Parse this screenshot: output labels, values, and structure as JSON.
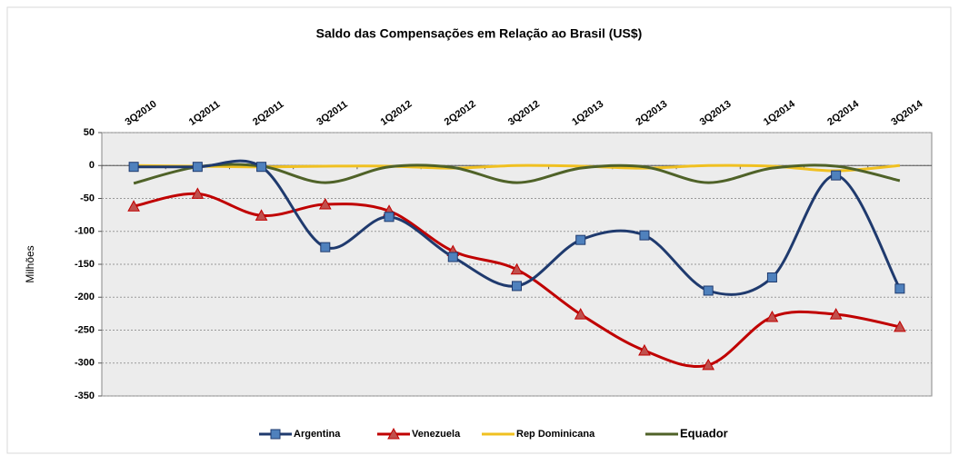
{
  "chart_data": {
    "type": "line",
    "title": "Saldo das Compensações em Relação ao Brasil (US$)",
    "y_label": "Milhões",
    "categories": [
      "3Q2010",
      "1Q2011",
      "2Q2011",
      "3Q2011",
      "1Q2012",
      "2Q2012",
      "3Q2012",
      "1Q2013",
      "2Q2013",
      "3Q2013",
      "1Q2014",
      "2Q2014",
      "3Q2014"
    ],
    "series": [
      {
        "name": "Argentina",
        "color": "#1f3a6e",
        "marker": "square",
        "marker_color": "#4f81bd",
        "values": [
          -2,
          -2,
          -2,
          -124,
          -78,
          -139,
          -183,
          -113,
          -106,
          -190,
          -170,
          -15,
          -187
        ]
      },
      {
        "name": "Venezuela",
        "color": "#c00000",
        "marker": "triangle",
        "marker_color": "#c0504d",
        "values": [
          -62,
          -43,
          -76,
          -59,
          -69,
          -130,
          -158,
          -226,
          -281,
          -303,
          -230,
          -226,
          -245
        ]
      },
      {
        "name": "Rep Dominicana",
        "color": "#f0c020",
        "values": [
          0,
          -1,
          -2,
          -1,
          -1,
          -4,
          0,
          -1,
          -4,
          0,
          -1,
          -8,
          0
        ]
      },
      {
        "name": "Equador",
        "color": "#4f6228",
        "values": [
          -27,
          -2,
          -1,
          -26,
          -2,
          -3,
          -26,
          -4,
          -2,
          -26,
          -4,
          -1,
          -23
        ]
      }
    ],
    "ylim": [
      -350,
      50
    ],
    "yticks": [
      50,
      0,
      -50,
      -100,
      -150,
      -200,
      -250,
      -300,
      -350
    ],
    "grid": true,
    "legend": "bottom"
  }
}
